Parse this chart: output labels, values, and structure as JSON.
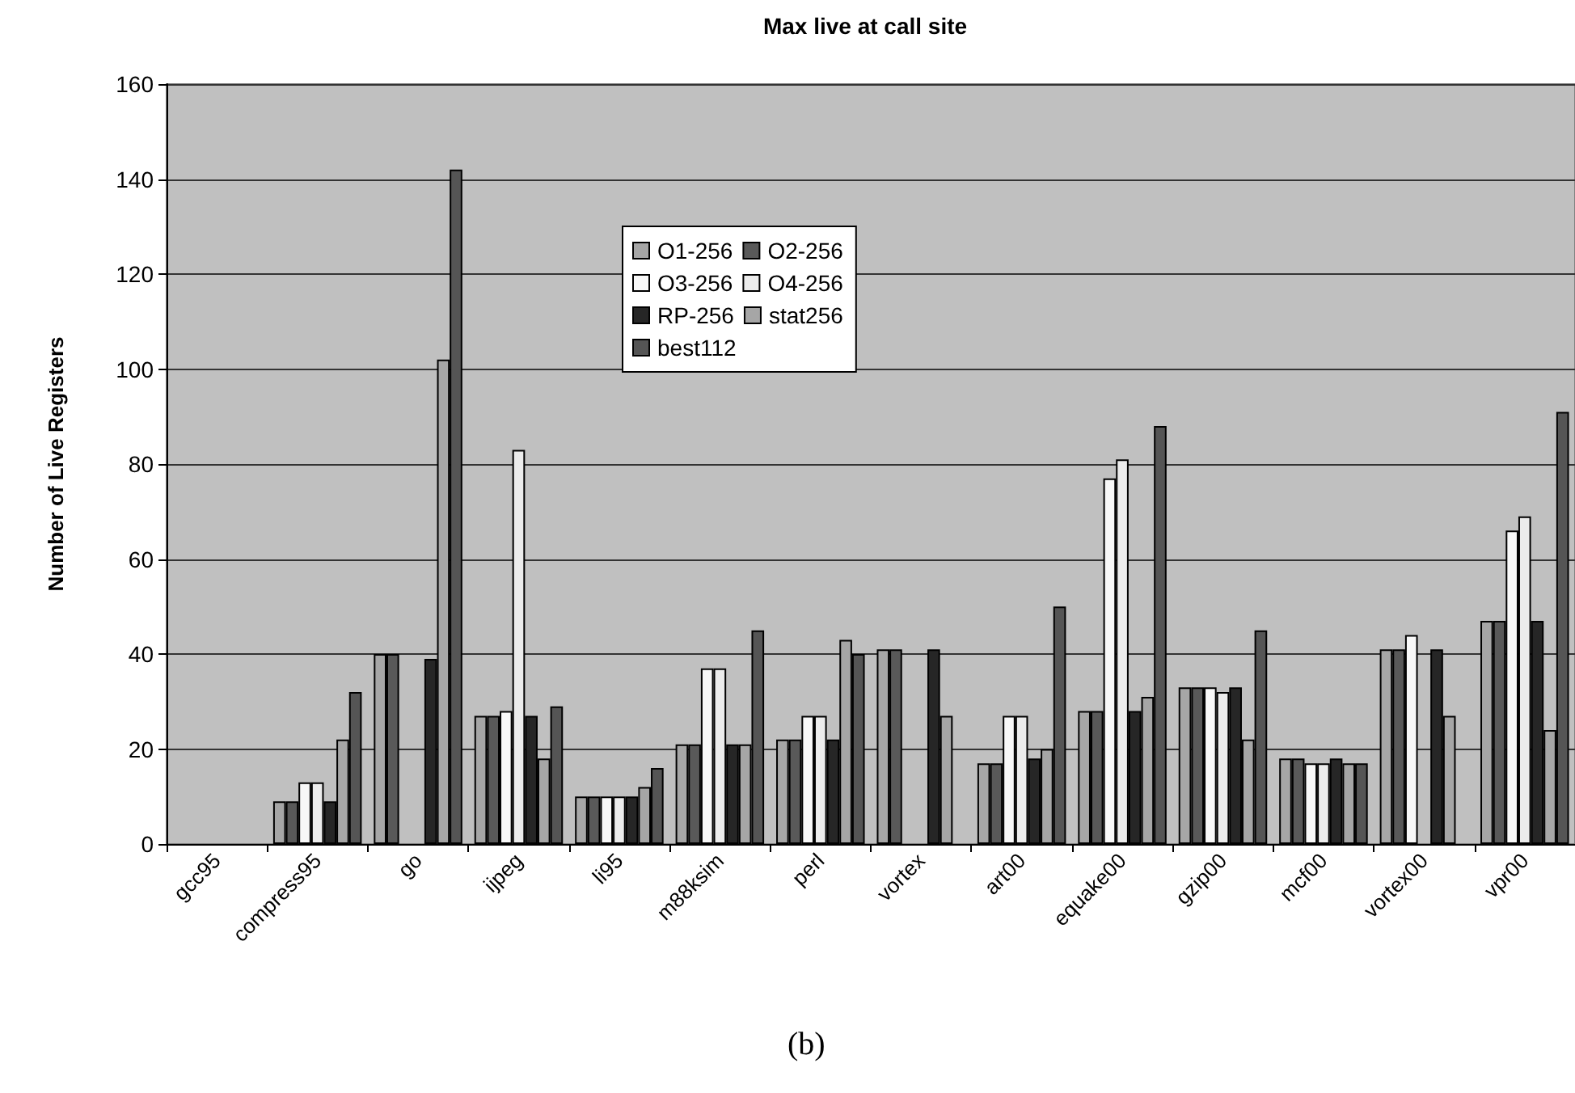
{
  "chart_data": {
    "type": "bar",
    "title": "Max live at call site",
    "ylabel": "Number of Live Registers",
    "annotations": [
      "(b)"
    ],
    "categories": [
      "gcc95",
      "compress95",
      "go",
      "ijpeg",
      "li95",
      "m88ksim",
      "perl",
      "vortex",
      "art00",
      "equake00",
      "gzip00",
      "mcf00",
      "vortex00",
      "vpr00"
    ],
    "series": [
      {
        "name": "O1-256",
        "color": "#a6a6a6",
        "values": [
          null,
          9,
          40,
          27,
          10,
          21,
          22,
          41,
          17,
          28,
          33,
          18,
          41,
          47
        ]
      },
      {
        "name": "O2-256",
        "color": "#595959",
        "values": [
          null,
          9,
          40,
          27,
          10,
          21,
          22,
          41,
          17,
          28,
          33,
          18,
          41,
          47
        ]
      },
      {
        "name": "O3-256",
        "color": "#f8f8f8",
        "values": [
          null,
          13,
          null,
          28,
          10,
          37,
          27,
          null,
          27,
          77,
          33,
          17,
          44,
          66
        ]
      },
      {
        "name": "O4-256",
        "color": "#ececec",
        "values": [
          null,
          13,
          null,
          83,
          10,
          37,
          27,
          null,
          27,
          81,
          32,
          17,
          null,
          69
        ]
      },
      {
        "name": "RP-256",
        "color": "#262626",
        "values": [
          null,
          9,
          39,
          27,
          10,
          21,
          22,
          41,
          18,
          28,
          33,
          18,
          41,
          47
        ]
      },
      {
        "name": "stat256",
        "color": "#a6a6a6",
        "values": [
          null,
          22,
          102,
          18,
          12,
          21,
          43,
          27,
          20,
          31,
          22,
          17,
          27,
          24
        ]
      },
      {
        "name": "best112",
        "color": "#555555",
        "values": [
          null,
          32,
          142,
          29,
          16,
          45,
          40,
          null,
          50,
          88,
          45,
          17,
          null,
          91
        ]
      }
    ],
    "ylim": [
      0,
      160
    ],
    "yticks": [
      0,
      20,
      40,
      60,
      80,
      100,
      120,
      140,
      160
    ],
    "grid": "y",
    "legend": "top"
  }
}
